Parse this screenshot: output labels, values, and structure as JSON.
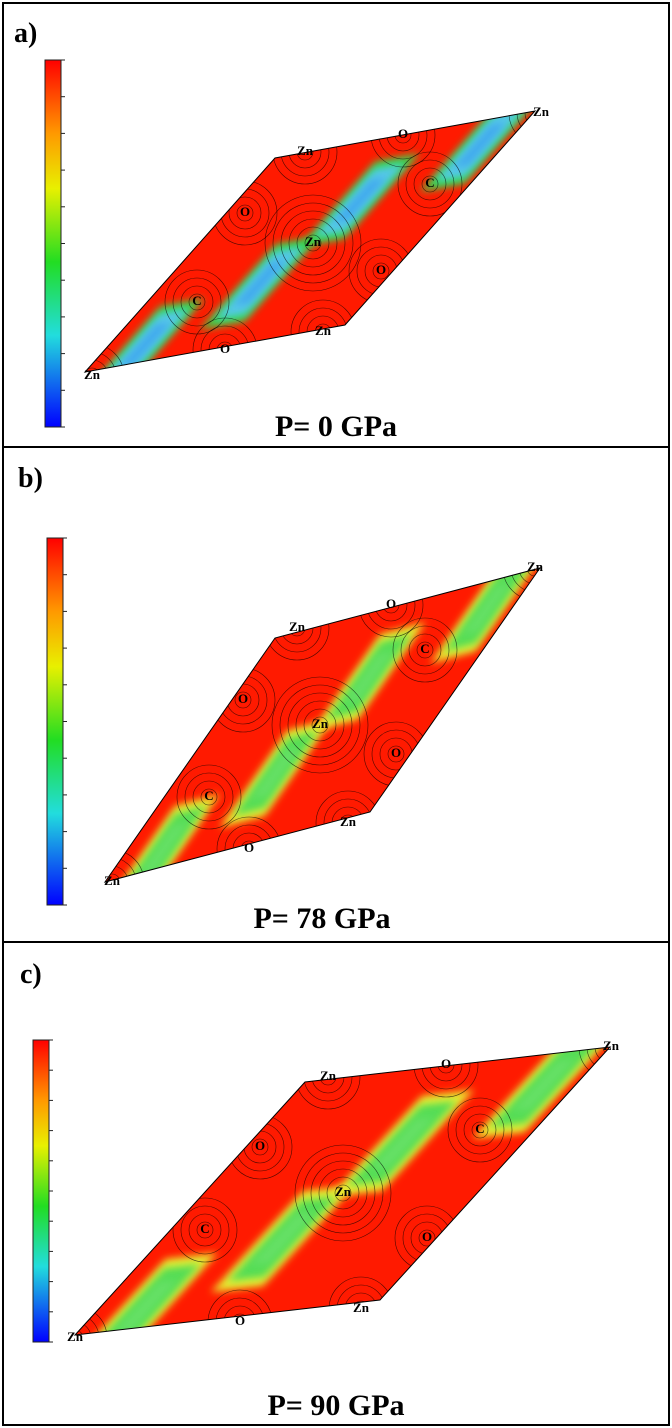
{
  "panels": [
    {
      "label": "a)",
      "caption": "P= 0 GPa",
      "atoms": [
        "Zn",
        "O",
        "Zn",
        "C",
        "O",
        "Zn",
        "O",
        "C",
        "Zn",
        "O",
        "Zn"
      ]
    },
    {
      "label": "b)",
      "caption": "P= 78 GPa",
      "atoms": [
        "Zn",
        "O",
        "Zn",
        "C",
        "O",
        "Zn",
        "O",
        "C",
        "Zn",
        "O",
        "Zn"
      ]
    },
    {
      "label": "c)",
      "caption": "P= 90 GPa",
      "atoms": [
        "Zn",
        "O",
        "Zn",
        "C",
        "O",
        "Zn",
        "O",
        "C",
        "Zn",
        "O",
        "Zn"
      ]
    }
  ]
}
